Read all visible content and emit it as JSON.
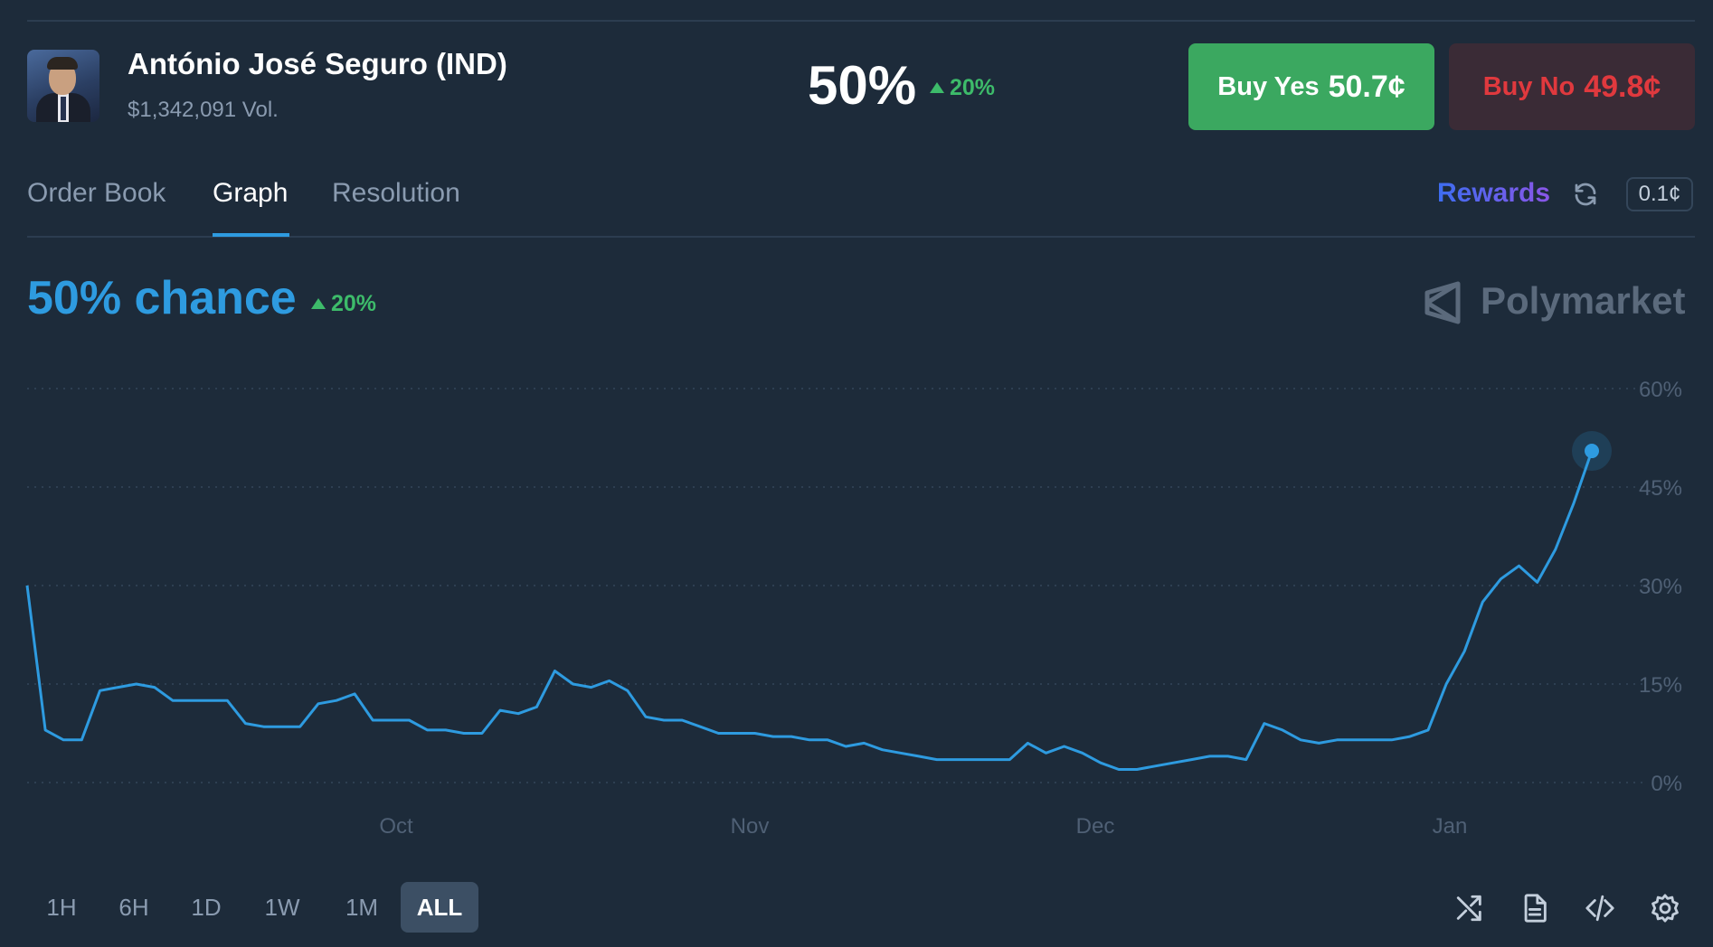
{
  "header": {
    "title": "António José Seguro (IND)",
    "volume": "$1,342,091 Vol.",
    "probability": "50%",
    "change": "20%",
    "buy_yes": {
      "label": "Buy Yes",
      "price": "50.7¢"
    },
    "buy_no": {
      "label": "Buy No",
      "price": "49.8¢"
    }
  },
  "tabs": [
    {
      "label": "Order Book"
    },
    {
      "label": "Graph",
      "active": true
    },
    {
      "label": "Resolution"
    }
  ],
  "toolbar": {
    "rewards": "Rewards",
    "tick_size": "0.1¢"
  },
  "chart_header": {
    "chance": "50% chance",
    "change": "20%",
    "brand": "Polymarket"
  },
  "ranges": [
    "1H",
    "6H",
    "1D",
    "1W",
    "1M",
    "ALL"
  ],
  "selected_range": "ALL",
  "colors": {
    "background": "#1d2b3a",
    "line": "#2e9be0",
    "up": "#3dbb6a",
    "yes": "#3ba860",
    "no": "#e0393e"
  },
  "icons": [
    "refresh-icon",
    "polymarket-logo-icon",
    "shuffle-icon",
    "document-icon",
    "code-icon",
    "settings-icon"
  ],
  "chart_data": {
    "type": "line",
    "x_labels": [
      "Oct",
      "Nov",
      "Dec",
      "Jan"
    ],
    "y_ticks": [
      "0%",
      "15%",
      "30%",
      "45%",
      "60%"
    ],
    "ylim": [
      0,
      60
    ],
    "grid": true,
    "series": [
      {
        "values": [
          30,
          8,
          6.5,
          6.5,
          14,
          14.5,
          15,
          14.5,
          12.5,
          12.5,
          12.5,
          12.5,
          9,
          8.5,
          8.5,
          8.5,
          12,
          12.5,
          13.5,
          9.5,
          9.5,
          9.5,
          8,
          8,
          7.5,
          7.5,
          11,
          10.5,
          11.5,
          17,
          15,
          14.5,
          15.5,
          14,
          10,
          9.5,
          9.5,
          8.5,
          7.5,
          7.5,
          7.5,
          7,
          7,
          6.5,
          6.5,
          5.5,
          6,
          5,
          4.5,
          4,
          3.5,
          3.5,
          3.5,
          3.5,
          3.5,
          6,
          4.5,
          5.5,
          4.5,
          3,
          2,
          2,
          2.5,
          3,
          3.5,
          4,
          4,
          3.5,
          9,
          8,
          6.5,
          6,
          6.5,
          6.5,
          6.5,
          6.5,
          7,
          8,
          15,
          20,
          27.5,
          31,
          33,
          30.5,
          35.5,
          42.5,
          50.5
        ]
      }
    ]
  }
}
